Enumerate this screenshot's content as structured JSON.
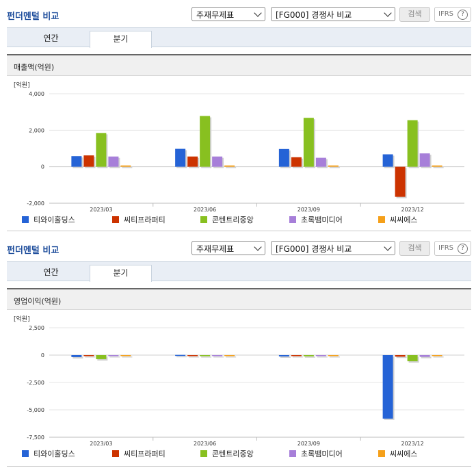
{
  "panels": [
    {
      "title": "펀더멘털 비교",
      "select_period": "주재무제표",
      "select_group": "[FG000] 경쟁사 비교",
      "search_label": "검색",
      "ifrs_label": "IFRS",
      "help_glyph": "?",
      "tabs": [
        {
          "label": "연간",
          "active": false
        },
        {
          "label": "분기",
          "active": true
        }
      ],
      "section_title": "매출액(억원)",
      "chart_data": {
        "type": "bar",
        "unit_label": "[억원]",
        "categories": [
          "2023/03",
          "2023/06",
          "2023/09",
          "2023/12"
        ],
        "ylim": [
          -2000,
          4000
        ],
        "yticks": [
          -2000,
          0,
          2000,
          4000
        ],
        "ytick_labels": [
          "-2,000",
          "0",
          "2,000",
          "4,000"
        ],
        "grid": true,
        "legend_position": "bottom",
        "series": [
          {
            "name": "티와이홀딩스",
            "color": "#2563d6",
            "values": [
              580,
              980,
              970,
              680
            ]
          },
          {
            "name": "씨티프라퍼티",
            "color": "#cc3300",
            "values": [
              620,
              560,
              520,
              -1650
            ]
          },
          {
            "name": "콘텐트리중앙",
            "color": "#88c020",
            "values": [
              1850,
              2780,
              2680,
              2550
            ]
          },
          {
            "name": "초록뱀미디어",
            "color": "#a77fd9",
            "values": [
              560,
              560,
              490,
              730
            ]
          },
          {
            "name": "씨씨에스",
            "color": "#f5a01a",
            "values": [
              70,
              70,
              70,
              70
            ]
          }
        ]
      }
    },
    {
      "title": "펀더멘털 비교",
      "select_period": "주재무제표",
      "select_group": "[FG000] 경쟁사 비교",
      "search_label": "검색",
      "ifrs_label": "IFRS",
      "help_glyph": "?",
      "tabs": [
        {
          "label": "연간",
          "active": false
        },
        {
          "label": "분기",
          "active": true
        }
      ],
      "section_title": "영업이익(억원)",
      "chart_data": {
        "type": "bar",
        "unit_label": "[억원]",
        "categories": [
          "2023/03",
          "2023/06",
          "2023/09",
          "2023/12"
        ],
        "ylim": [
          -7500,
          2500
        ],
        "yticks": [
          -7500,
          -5000,
          -2500,
          0,
          2500
        ],
        "ytick_labels": [
          "-7,500",
          "-5,000",
          "-2,500",
          "0",
          "2,500"
        ],
        "grid": true,
        "legend_position": "bottom",
        "series": [
          {
            "name": "티와이홀딩스",
            "color": "#2563d6",
            "values": [
              -180,
              20,
              -120,
              -5800
            ]
          },
          {
            "name": "씨티프라퍼티",
            "color": "#cc3300",
            "values": [
              -20,
              -90,
              -20,
              -140
            ]
          },
          {
            "name": "콘텐트리중앙",
            "color": "#88c020",
            "values": [
              -370,
              -100,
              -110,
              -560
            ]
          },
          {
            "name": "초록뱀미디어",
            "color": "#a77fd9",
            "values": [
              -20,
              -90,
              -30,
              -160
            ]
          },
          {
            "name": "씨씨에스",
            "color": "#f5a01a",
            "values": [
              -10,
              -10,
              -10,
              -10
            ]
          }
        ]
      }
    }
  ]
}
